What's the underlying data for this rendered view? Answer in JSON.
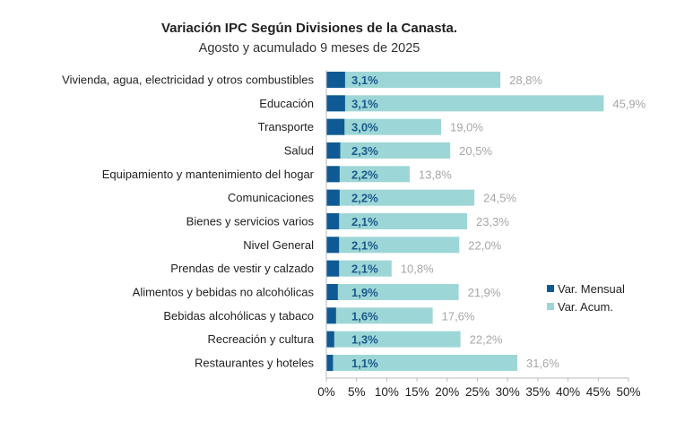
{
  "chart_data": {
    "type": "bar",
    "orientation": "horizontal",
    "title": "Variación IPC Según Divisiones de la Canasta.",
    "subtitle": "Agosto y acumulado 9 meses de 2025",
    "categories": [
      "Vivienda, agua, electricidad y otros combustibles",
      "Educación",
      "Transporte",
      "Salud",
      "Equipamiento y mantenimiento del hogar",
      "Comunicaciones",
      "Bienes y servicios varios",
      "Nivel General",
      "Prendas de vestir y calzado",
      "Alimentos y bebidas no alcohólicas",
      "Bebidas alcohólicas y tabaco",
      "Recreación y cultura",
      "Restaurantes y hoteles"
    ],
    "series": [
      {
        "name": "Var. Mensual",
        "color": "#0f5a94",
        "values": [
          3.1,
          3.1,
          3.0,
          2.3,
          2.2,
          2.2,
          2.1,
          2.1,
          2.1,
          1.9,
          1.6,
          1.3,
          1.1
        ],
        "labels": [
          "3,1%",
          "3,1%",
          "3,0%",
          "2,3%",
          "2,2%",
          "2,2%",
          "2,1%",
          "2,1%",
          "2,1%",
          "1,9%",
          "1,6%",
          "1,3%",
          "1,1%"
        ]
      },
      {
        "name": "Var. Acum.",
        "color": "#9dd6d6",
        "values": [
          28.8,
          45.9,
          19.0,
          20.5,
          13.8,
          24.5,
          23.3,
          22.0,
          10.8,
          21.9,
          17.6,
          22.2,
          31.6
        ],
        "labels": [
          "28,8%",
          "45,9%",
          "19,0%",
          "20,5%",
          "13,8%",
          "24,5%",
          "23,3%",
          "22,0%",
          "10,8%",
          "21,9%",
          "17,6%",
          "22,2%",
          "31,6%"
        ]
      }
    ],
    "xlim": [
      0,
      50
    ],
    "xticks": [
      "0%",
      "5%",
      "10%",
      "15%",
      "20%",
      "25%",
      "30%",
      "35%",
      "40%",
      "45%",
      "50%"
    ],
    "legend": "right",
    "grid": false
  }
}
